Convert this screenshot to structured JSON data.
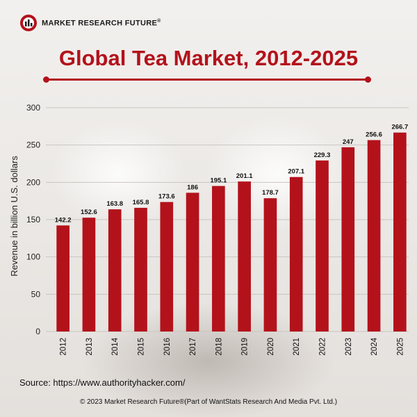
{
  "header": {
    "brand": "MARKET RESEARCH FUTURE",
    "brand_mark": "®",
    "logo_icon": "mrf-logo-icon"
  },
  "chart_data": {
    "type": "bar",
    "title": "Global Tea Market, 2012-2025",
    "xlabel": "",
    "ylabel": "Revenue in billion U.S. dollars",
    "categories": [
      "2012",
      "2013",
      "2014",
      "2015",
      "2016",
      "2017",
      "2018",
      "2019",
      "2020",
      "2021",
      "2022",
      "2023",
      "2024",
      "2025"
    ],
    "values": [
      142.2,
      152.6,
      163.8,
      165.8,
      173.6,
      186,
      195.1,
      201.1,
      178.7,
      207.1,
      229.3,
      247,
      256.6,
      266.7
    ],
    "value_labels": [
      "142.2",
      "152.6",
      "163.8",
      "165.8",
      "173.6",
      "186",
      "195.1",
      "201.1",
      "178.7",
      "207.1",
      "229.3",
      "247",
      "256.6",
      "266.7"
    ],
    "ylim": [
      0,
      300
    ],
    "yticks": [
      0,
      50,
      100,
      150,
      200,
      250,
      300
    ],
    "grid": true,
    "bar_color": "#b3121b"
  },
  "source_text": "Source: https://www.authorityhacker.com/",
  "footer_text": "© 2023 Market Research Future®(Part of WantStats Research And Media Pvt. Ltd.)"
}
